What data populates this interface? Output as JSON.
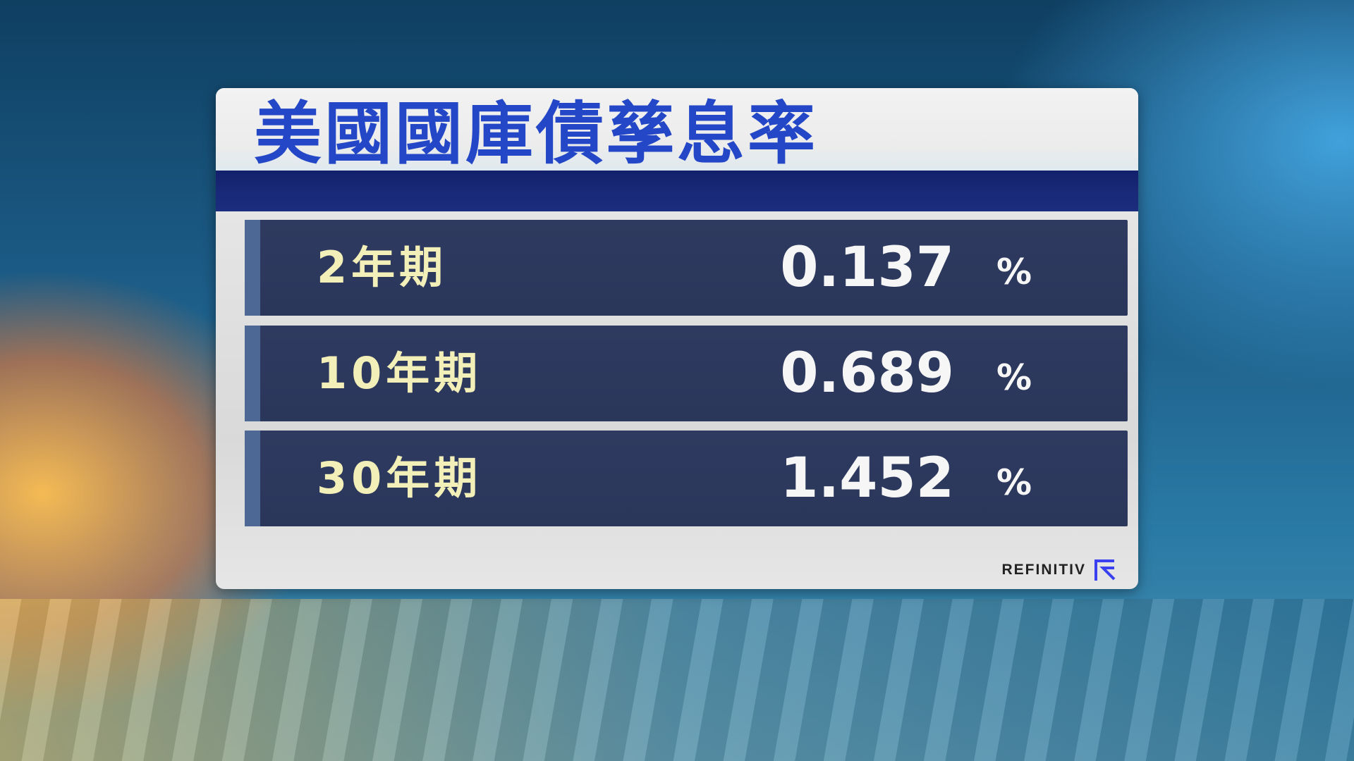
{
  "title": "美國國庫債孳息率",
  "rows": [
    {
      "term": "2年期",
      "yield": "0.137",
      "unit": "%"
    },
    {
      "term": "10年期",
      "yield": "0.689",
      "unit": "%"
    },
    {
      "term": "30年期",
      "yield": "1.452",
      "unit": "%"
    }
  ],
  "source": {
    "logo": "REFINITIV",
    "logo_icon": "refinitiv-r-icon",
    "logo_color": "#3a3ff0"
  },
  "colors": {
    "title": "#2347c6",
    "band": "#13206b",
    "row": "#2e3a5f",
    "label": "#f3efb8",
    "value": "#f6f6f6"
  }
}
